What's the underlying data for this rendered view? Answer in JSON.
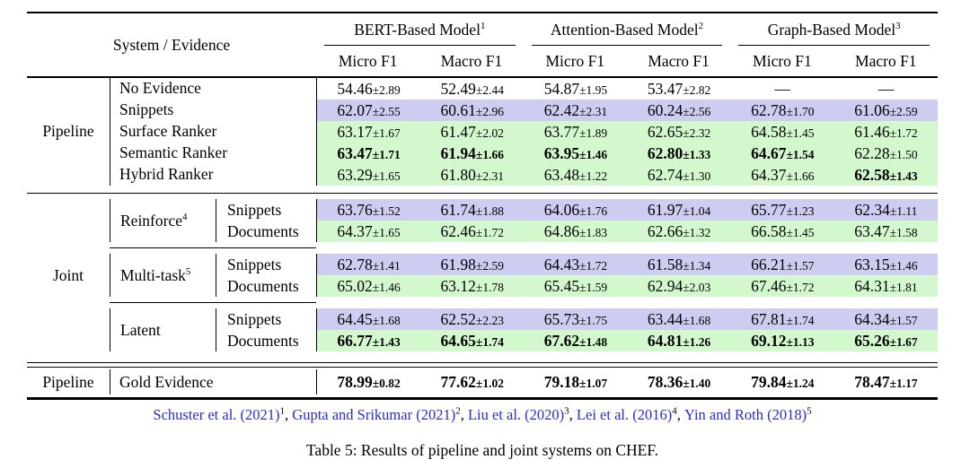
{
  "colors": {
    "snippet_row": "#cdccf1",
    "ranker_row": "#d4f8cd",
    "citation_blue": "#2b2bd0"
  },
  "header": {
    "system_evidence": "System / Evidence",
    "models": [
      {
        "label": "BERT-Based Model",
        "sup": "1"
      },
      {
        "label": "Attention-Based Model",
        "sup": "2"
      },
      {
        "label": "Graph-Based Model",
        "sup": "3"
      }
    ],
    "metric_cols": [
      "Micro F1",
      "Macro F1",
      "Micro F1",
      "Macro F1",
      "Micro F1",
      "Macro F1"
    ]
  },
  "body": {
    "pipeline": {
      "label": "Pipeline",
      "rows": [
        {
          "evidence": "No Evidence",
          "bg": "white",
          "cells": [
            {
              "v": "54.46",
              "pm": "±2.89"
            },
            {
              "v": "52.49",
              "pm": "±2.44"
            },
            {
              "v": "54.87",
              "pm": "±1.95"
            },
            {
              "v": "53.47",
              "pm": "±2.82"
            },
            {
              "dash": "—"
            },
            {
              "dash": "—"
            }
          ]
        },
        {
          "evidence": "Snippets",
          "bg": "lavender",
          "cells": [
            {
              "v": "62.07",
              "pm": "±2.55"
            },
            {
              "v": "60.61",
              "pm": "±2.96"
            },
            {
              "v": "62.42",
              "pm": "±2.31"
            },
            {
              "v": "60.24",
              "pm": "±2.56"
            },
            {
              "v": "62.78",
              "pm": "±1.70"
            },
            {
              "v": "61.06",
              "pm": "±2.59"
            }
          ]
        },
        {
          "evidence": "Surface Ranker",
          "bg": "green",
          "cells": [
            {
              "v": "63.17",
              "pm": "±1.67"
            },
            {
              "v": "61.47",
              "pm": "±2.02"
            },
            {
              "v": "63.77",
              "pm": "±1.89"
            },
            {
              "v": "62.65",
              "pm": "±2.32"
            },
            {
              "v": "64.58",
              "pm": "±1.45"
            },
            {
              "v": "61.46",
              "pm": "±1.72"
            }
          ]
        },
        {
          "evidence": "Semantic Ranker",
          "bg": "green",
          "cells": [
            {
              "v": "63.47",
              "pm": "±1.71",
              "b": true
            },
            {
              "v": "61.94",
              "pm": "±1.66",
              "b": true
            },
            {
              "v": "63.95",
              "pm": "±1.46",
              "b": true
            },
            {
              "v": "62.80",
              "pm": "±1.33",
              "b": true
            },
            {
              "v": "64.67",
              "pm": "±1.54",
              "b": true
            },
            {
              "v": "62.28",
              "pm": "±1.50"
            }
          ]
        },
        {
          "evidence": "Hybrid Ranker",
          "bg": "green",
          "cells": [
            {
              "v": "63.29",
              "pm": "±1.65"
            },
            {
              "v": "61.80",
              "pm": "±2.31"
            },
            {
              "v": "63.48",
              "pm": "±1.22"
            },
            {
              "v": "62.74",
              "pm": "±1.30"
            },
            {
              "v": "64.37",
              "pm": "±1.66"
            },
            {
              "v": "62.58",
              "pm": "±1.43",
              "b": true
            }
          ]
        }
      ]
    },
    "joint": {
      "label": "Joint",
      "groups": [
        {
          "method": "Reinforce",
          "sup": "4",
          "rows": [
            {
              "evidence": "Snippets",
              "bg": "lavender",
              "cells": [
                {
                  "v": "63.76",
                  "pm": "±1.52"
                },
                {
                  "v": "61.74",
                  "pm": "±1.88"
                },
                {
                  "v": "64.06",
                  "pm": "±1.76"
                },
                {
                  "v": "61.97",
                  "pm": "±1.04"
                },
                {
                  "v": "65.77",
                  "pm": "±1.23"
                },
                {
                  "v": "62.34",
                  "pm": "±1.11"
                }
              ]
            },
            {
              "evidence": "Documents",
              "bg": "green",
              "cells": [
                {
                  "v": "64.37",
                  "pm": "±1.65"
                },
                {
                  "v": "62.46",
                  "pm": "±1.72"
                },
                {
                  "v": "64.86",
                  "pm": "±1.83"
                },
                {
                  "v": "62.66",
                  "pm": "±1.32"
                },
                {
                  "v": "66.58",
                  "pm": "±1.45"
                },
                {
                  "v": "63.47",
                  "pm": "±1.58"
                }
              ]
            }
          ]
        },
        {
          "method": "Multi-task",
          "sup": "5",
          "rows": [
            {
              "evidence": "Snippets",
              "bg": "lavender",
              "cells": [
                {
                  "v": "62.78",
                  "pm": "±1.41"
                },
                {
                  "v": "61.98",
                  "pm": "±2.59"
                },
                {
                  "v": "64.43",
                  "pm": "±1.72"
                },
                {
                  "v": "61.58",
                  "pm": "±1.34"
                },
                {
                  "v": "66.21",
                  "pm": "±1.57"
                },
                {
                  "v": "63.15",
                  "pm": "±1.46"
                }
              ]
            },
            {
              "evidence": "Documents",
              "bg": "green",
              "cells": [
                {
                  "v": "65.02",
                  "pm": "±1.46"
                },
                {
                  "v": "63.12",
                  "pm": "±1.78"
                },
                {
                  "v": "65.45",
                  "pm": "±1.59"
                },
                {
                  "v": "62.94",
                  "pm": "±2.03"
                },
                {
                  "v": "67.46",
                  "pm": "±1.72"
                },
                {
                  "v": "64.31",
                  "pm": "±1.81"
                }
              ]
            }
          ]
        },
        {
          "method": "Latent",
          "sup": "",
          "rows": [
            {
              "evidence": "Snippets",
              "bg": "lavender",
              "cells": [
                {
                  "v": "64.45",
                  "pm": "±1.68"
                },
                {
                  "v": "62.52",
                  "pm": "±2.23"
                },
                {
                  "v": "65.73",
                  "pm": "±1.75"
                },
                {
                  "v": "63.44",
                  "pm": "±1.68"
                },
                {
                  "v": "67.81",
                  "pm": "±1.74"
                },
                {
                  "v": "64.34",
                  "pm": "±1.57"
                }
              ]
            },
            {
              "evidence": "Documents",
              "bg": "green",
              "cells": [
                {
                  "v": "66.77",
                  "pm": "±1.43",
                  "b": true
                },
                {
                  "v": "64.65",
                  "pm": "±1.74",
                  "b": true
                },
                {
                  "v": "67.62",
                  "pm": "±1.48",
                  "b": true
                },
                {
                  "v": "64.81",
                  "pm": "±1.26",
                  "b": true
                },
                {
                  "v": "69.12",
                  "pm": "±1.13",
                  "b": true
                },
                {
                  "v": "65.26",
                  "pm": "±1.67",
                  "b": true
                }
              ]
            }
          ]
        }
      ]
    },
    "gold": {
      "label": "Pipeline",
      "evidence": "Gold Evidence",
      "bg": "white",
      "cells": [
        {
          "v": "78.99",
          "pm": "±0.82",
          "b": true
        },
        {
          "v": "77.62",
          "pm": "±1.02",
          "b": true
        },
        {
          "v": "79.18",
          "pm": "±1.07",
          "b": true
        },
        {
          "v": "78.36",
          "pm": "±1.40",
          "b": true
        },
        {
          "v": "79.84",
          "pm": "±1.24",
          "b": true
        },
        {
          "v": "78.47",
          "pm": "±1.17",
          "b": true
        }
      ]
    }
  },
  "footer": {
    "citations": [
      {
        "text": "Schuster et al. (2021)",
        "sup": "1"
      },
      {
        "text": "Gupta and Srikumar (2021)",
        "sup": "2"
      },
      {
        "text": "Liu et al. (2020)",
        "sup": "3"
      },
      {
        "text": "Lei et al. (2016)",
        "sup": "4"
      },
      {
        "text": "Yin and Roth (2018)",
        "sup": "5"
      }
    ],
    "caption": "Table 5: Results of pipeline and joint systems on CHEF."
  }
}
